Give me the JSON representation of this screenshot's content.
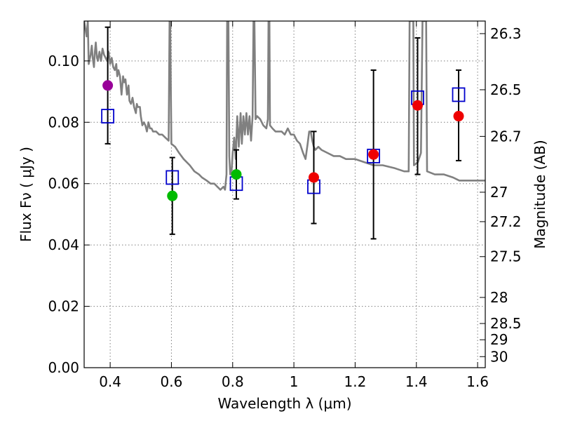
{
  "chart_data": {
    "type": "scatter",
    "title": "",
    "xlabel": "Wavelength  λ (μm)",
    "ylabel": "Flux  Fν  ( μJy )",
    "ylabel_right": "Magnitude (AB)",
    "xlim": [
      0.315,
      1.625
    ],
    "ylim": [
      0.0,
      0.113
    ],
    "grid": true,
    "x_ticks": [
      0.4,
      0.6,
      0.8,
      1.0,
      1.2,
      1.4,
      1.6
    ],
    "x_tick_labels": [
      "0.4",
      "0.6",
      "0.8",
      "1",
      "1.2",
      "1.4",
      "1.6"
    ],
    "y_ticks": [
      0.0,
      0.02,
      0.04,
      0.06,
      0.08,
      0.1
    ],
    "y_tick_labels": [
      "0.00",
      "0.02",
      "0.04",
      "0.06",
      "0.08",
      "0.10"
    ],
    "mag_ticks": [
      {
        "label": "26.3",
        "flux": 0.1089
      },
      {
        "label": "26.5",
        "flux": 0.0906
      },
      {
        "label": "26.7",
        "flux": 0.0754
      },
      {
        "label": "27",
        "flux": 0.0572
      },
      {
        "label": "27.2",
        "flux": 0.0476
      },
      {
        "label": "27.5",
        "flux": 0.0362
      },
      {
        "label": "28",
        "flux": 0.0229
      },
      {
        "label": "28.5",
        "flux": 0.0144
      },
      {
        "label": "29",
        "flux": 0.0091
      },
      {
        "label": "30",
        "flux": 0.0036
      }
    ],
    "colors": {
      "sed": "#808080",
      "model_box": "#0000cc",
      "errorbar": "#000000",
      "magenta": "#990099",
      "green": "#00bb00",
      "red": "#ee0000"
    },
    "series": [
      {
        "name": "model_sed",
        "style": "line",
        "color": "#808080",
        "points": [
          [
            0.315,
            0.113
          ],
          [
            0.323,
            0.108
          ],
          [
            0.327,
            0.113
          ],
          [
            0.33,
            0.099
          ],
          [
            0.336,
            0.102
          ],
          [
            0.34,
            0.105
          ],
          [
            0.343,
            0.101
          ],
          [
            0.347,
            0.098
          ],
          [
            0.35,
            0.103
          ],
          [
            0.353,
            0.106
          ],
          [
            0.357,
            0.101
          ],
          [
            0.36,
            0.1
          ],
          [
            0.365,
            0.103
          ],
          [
            0.37,
            0.1
          ],
          [
            0.375,
            0.104
          ],
          [
            0.38,
            0.102
          ],
          [
            0.39,
            0.1
          ],
          [
            0.395,
            0.103
          ],
          [
            0.4,
            0.099
          ],
          [
            0.405,
            0.101
          ],
          [
            0.41,
            0.098
          ],
          [
            0.415,
            0.097
          ],
          [
            0.42,
            0.099
          ],
          [
            0.423,
            0.095
          ],
          [
            0.427,
            0.097
          ],
          [
            0.432,
            0.095
          ],
          [
            0.437,
            0.089
          ],
          [
            0.442,
            0.095
          ],
          [
            0.446,
            0.093
          ],
          [
            0.45,
            0.094
          ],
          [
            0.455,
            0.089
          ],
          [
            0.46,
            0.092
          ],
          [
            0.463,
            0.087
          ],
          [
            0.468,
            0.086
          ],
          [
            0.473,
            0.088
          ],
          [
            0.478,
            0.085
          ],
          [
            0.484,
            0.083
          ],
          [
            0.487,
            0.086
          ],
          [
            0.49,
            0.085
          ],
          [
            0.497,
            0.085
          ],
          [
            0.5,
            0.082
          ],
          [
            0.505,
            0.079
          ],
          [
            0.51,
            0.08
          ],
          [
            0.515,
            0.079
          ],
          [
            0.52,
            0.077
          ],
          [
            0.525,
            0.08
          ],
          [
            0.53,
            0.078
          ],
          [
            0.535,
            0.078
          ],
          [
            0.54,
            0.077
          ],
          [
            0.55,
            0.077
          ],
          [
            0.56,
            0.076
          ],
          [
            0.57,
            0.076
          ],
          [
            0.58,
            0.075
          ],
          [
            0.591,
            0.074
          ],
          [
            0.594,
            0.113
          ],
          [
            0.596,
            0.113
          ],
          [
            0.6,
            0.073
          ],
          [
            0.612,
            0.072
          ],
          [
            0.625,
            0.07
          ],
          [
            0.64,
            0.068
          ],
          [
            0.66,
            0.066
          ],
          [
            0.675,
            0.064
          ],
          [
            0.69,
            0.063
          ],
          [
            0.7,
            0.062
          ],
          [
            0.715,
            0.061
          ],
          [
            0.728,
            0.06
          ],
          [
            0.74,
            0.06
          ],
          [
            0.75,
            0.059
          ],
          [
            0.76,
            0.058
          ],
          [
            0.77,
            0.059
          ],
          [
            0.775,
            0.058
          ],
          [
            0.78,
            0.063
          ],
          [
            0.782,
            0.113
          ],
          [
            0.786,
            0.113
          ],
          [
            0.789,
            0.069
          ],
          [
            0.792,
            0.063
          ],
          [
            0.797,
            0.065
          ],
          [
            0.8,
            0.07
          ],
          [
            0.805,
            0.075
          ],
          [
            0.81,
            0.068
          ],
          [
            0.815,
            0.082
          ],
          [
            0.82,
            0.072
          ],
          [
            0.826,
            0.083
          ],
          [
            0.83,
            0.073
          ],
          [
            0.835,
            0.082
          ],
          [
            0.84,
            0.076
          ],
          [
            0.845,
            0.083
          ],
          [
            0.85,
            0.076
          ],
          [
            0.855,
            0.082
          ],
          [
            0.86,
            0.074
          ],
          [
            0.865,
            0.082
          ],
          [
            0.868,
            0.113
          ],
          [
            0.871,
            0.113
          ],
          [
            0.875,
            0.081
          ],
          [
            0.88,
            0.082
          ],
          [
            0.89,
            0.081
          ],
          [
            0.9,
            0.079
          ],
          [
            0.91,
            0.078
          ],
          [
            0.915,
            0.081
          ],
          [
            0.917,
            0.113
          ],
          [
            0.92,
            0.113
          ],
          [
            0.922,
            0.079
          ],
          [
            0.93,
            0.078
          ],
          [
            0.94,
            0.077
          ],
          [
            0.95,
            0.077
          ],
          [
            0.96,
            0.077
          ],
          [
            0.97,
            0.076
          ],
          [
            0.98,
            0.078
          ],
          [
            0.99,
            0.076
          ],
          [
            1.0,
            0.076
          ],
          [
            1.01,
            0.074
          ],
          [
            1.02,
            0.073
          ],
          [
            1.03,
            0.07
          ],
          [
            1.038,
            0.068
          ],
          [
            1.045,
            0.073
          ],
          [
            1.05,
            0.077
          ],
          [
            1.055,
            0.077
          ],
          [
            1.06,
            0.074
          ],
          [
            1.065,
            0.072
          ],
          [
            1.07,
            0.071
          ],
          [
            1.08,
            0.072
          ],
          [
            1.09,
            0.071
          ],
          [
            1.11,
            0.07
          ],
          [
            1.13,
            0.069
          ],
          [
            1.15,
            0.069
          ],
          [
            1.17,
            0.068
          ],
          [
            1.2,
            0.068
          ],
          [
            1.23,
            0.067
          ],
          [
            1.26,
            0.066
          ],
          [
            1.29,
            0.066
          ],
          [
            1.33,
            0.065
          ],
          [
            1.36,
            0.064
          ],
          [
            1.375,
            0.064
          ],
          [
            1.378,
            0.113
          ],
          [
            1.39,
            0.113
          ],
          [
            1.392,
            0.066
          ],
          [
            1.405,
            0.067
          ],
          [
            1.415,
            0.07
          ],
          [
            1.42,
            0.113
          ],
          [
            1.432,
            0.113
          ],
          [
            1.435,
            0.064
          ],
          [
            1.46,
            0.063
          ],
          [
            1.49,
            0.063
          ],
          [
            1.52,
            0.062
          ],
          [
            1.54,
            0.061
          ],
          [
            1.56,
            0.061
          ],
          [
            1.58,
            0.061
          ],
          [
            1.6,
            0.061
          ],
          [
            1.625,
            0.061
          ]
        ]
      },
      {
        "name": "model_bandpass",
        "style": "open-square",
        "color": "#0000cc",
        "points": [
          {
            "x": 0.392,
            "y": 0.082
          },
          {
            "x": 0.603,
            "y": 0.062
          },
          {
            "x": 0.812,
            "y": 0.06
          },
          {
            "x": 1.065,
            "y": 0.059
          },
          {
            "x": 1.26,
            "y": 0.069
          },
          {
            "x": 1.404,
            "y": 0.088
          },
          {
            "x": 1.538,
            "y": 0.089
          }
        ]
      },
      {
        "name": "observed",
        "style": "filled-circle-errorbar",
        "points": [
          {
            "x": 0.392,
            "y": 0.092,
            "err_low": 0.073,
            "err_high": 0.111,
            "color": "#990099"
          },
          {
            "x": 0.603,
            "y": 0.056,
            "err_low": 0.0435,
            "err_high": 0.0685,
            "color": "#00bb00"
          },
          {
            "x": 0.812,
            "y": 0.063,
            "err_low": 0.055,
            "err_high": 0.071,
            "color": "#00bb00"
          },
          {
            "x": 1.065,
            "y": 0.062,
            "err_low": 0.047,
            "err_high": 0.077,
            "color": "#ee0000"
          },
          {
            "x": 1.26,
            "y": 0.0695,
            "err_low": 0.042,
            "err_high": 0.097,
            "color": "#ee0000"
          },
          {
            "x": 1.404,
            "y": 0.0855,
            "err_low": 0.063,
            "err_high": 0.1075,
            "color": "#ee0000"
          },
          {
            "x": 1.538,
            "y": 0.082,
            "err_low": 0.0675,
            "err_high": 0.097,
            "color": "#ee0000"
          }
        ]
      }
    ]
  }
}
